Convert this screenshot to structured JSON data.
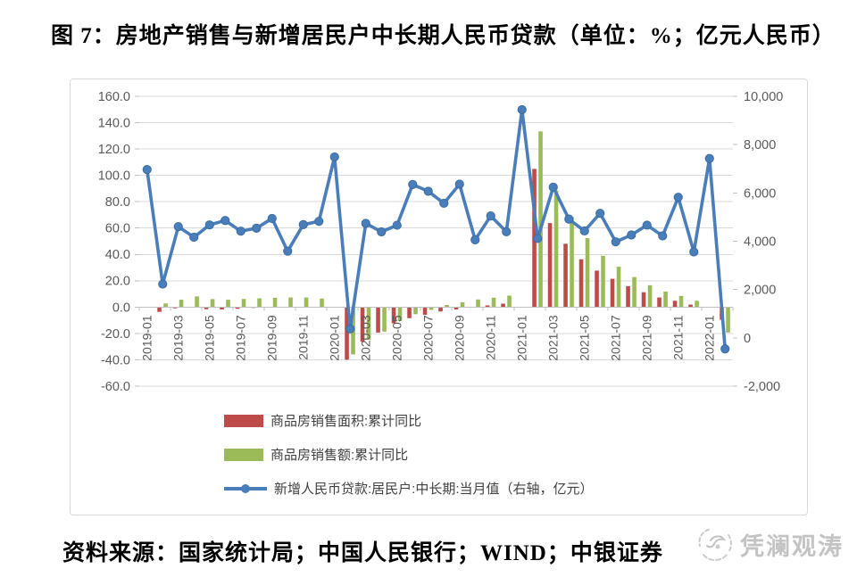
{
  "page": {
    "title": "图 7：房地产销售与新增居民户中长期人民币贷款（单位：%；亿元人民币）",
    "source_note": "资料来源：国家统计局；中国人民银行；WIND；中银证券",
    "brand": {
      "name": "凭澜观涛"
    }
  },
  "chart_data": {
    "type": "combo",
    "title": "房地产销售与新增居民户中长期人民币贷款",
    "units": "%；亿元人民币",
    "grid": true,
    "legend_position": "bottom-left-inside",
    "categories": [
      "2019-01",
      "2019-02",
      "2019-03",
      "2019-04",
      "2019-05",
      "2019-06",
      "2019-07",
      "2019-08",
      "2019-09",
      "2019-10",
      "2019-11",
      "2019-12",
      "2020-01",
      "2020-02",
      "2020-03",
      "2020-04",
      "2020-05",
      "2020-06",
      "2020-07",
      "2020-08",
      "2020-09",
      "2020-10",
      "2020-11",
      "2020-12",
      "2021-01",
      "2021-02",
      "2021-03",
      "2021-04",
      "2021-05",
      "2021-06",
      "2021-07",
      "2021-08",
      "2021-09",
      "2021-10",
      "2021-11",
      "2021-12",
      "2022-01",
      "2022-02"
    ],
    "x_tick_every": 2,
    "x_tick_labels": [
      "2019-01",
      "2019-03",
      "2019-05",
      "2019-07",
      "2019-09",
      "2019-11",
      "2020-01",
      "2020-03",
      "2020-05",
      "2020-07",
      "2020-09",
      "2020-11",
      "2021-01",
      "2021-03",
      "2021-05",
      "2021-07",
      "2021-09",
      "2021-11",
      "2022-01"
    ],
    "axes": {
      "left": {
        "min": -60,
        "max": 160,
        "step": 20,
        "tick_labels": [
          "160.0",
          "140.0",
          "120.0",
          "100.0",
          "80.0",
          "60.0",
          "40.0",
          "20.0",
          "0.0",
          "-20.0",
          "-40.0",
          "-60.0"
        ]
      },
      "right": {
        "min": -2000,
        "max": 10000,
        "step": 2000,
        "tick_labels": [
          "10,000",
          "8,000",
          "6,000",
          "4,000",
          "2,000",
          "0",
          "-2,000"
        ]
      }
    },
    "series": [
      {
        "name": "商品房销售面积:累计同比",
        "type": "bar",
        "axis": "left",
        "color": "#be4b48",
        "values": [
          null,
          -3.6,
          -0.9,
          -0.3,
          -1.6,
          -1.8,
          -1.3,
          -0.6,
          -0.1,
          0.1,
          0.2,
          -0.1,
          null,
          -39.9,
          -26.3,
          -19.3,
          -12.3,
          -8.4,
          -5.8,
          -3.3,
          -1.8,
          0.0,
          1.3,
          2.6,
          null,
          104.9,
          63.8,
          48.1,
          36.3,
          27.7,
          21.5,
          15.9,
          11.3,
          7.3,
          4.8,
          1.9,
          null,
          -9.6
        ]
      },
      {
        "name": "商品房销售额:累计同比",
        "type": "bar",
        "axis": "left",
        "color": "#9bbb59",
        "values": [
          null,
          2.8,
          5.6,
          8.1,
          6.1,
          5.6,
          6.2,
          6.7,
          7.1,
          7.3,
          7.3,
          6.5,
          null,
          -35.9,
          -24.7,
          -18.6,
          -10.6,
          -5.4,
          -2.1,
          1.6,
          3.7,
          5.8,
          7.2,
          8.7,
          null,
          133.4,
          88.5,
          68.2,
          52.4,
          38.9,
          30.7,
          22.8,
          16.6,
          11.8,
          8.5,
          4.8,
          null,
          -19.3
        ]
      },
      {
        "name": "新增人民币贷款:居民户:中长期:当月值（右轴，亿元）",
        "type": "line",
        "axis": "right",
        "color": "#4a7ebb",
        "marker_stroke": "#3a6d9e",
        "values": [
          6969,
          2226,
          4605,
          4165,
          4677,
          4858,
          4417,
          4540,
          4943,
          3587,
          4689,
          4824,
          7491,
          371,
          4738,
          4389,
          4662,
          6349,
          6067,
          5571,
          6362,
          4059,
          5049,
          4392,
          9448,
          4113,
          6239,
          4918,
          4426,
          5156,
          3974,
          4259,
          4667,
          4221,
          5821,
          3558,
          7424,
          -459
        ]
      }
    ],
    "style": {
      "gridline_color": "#d9d9d9",
      "axis_line_color": "#bfbfbf",
      "axis_text_color": "#595959",
      "border_color": "#d9d9d9"
    }
  }
}
